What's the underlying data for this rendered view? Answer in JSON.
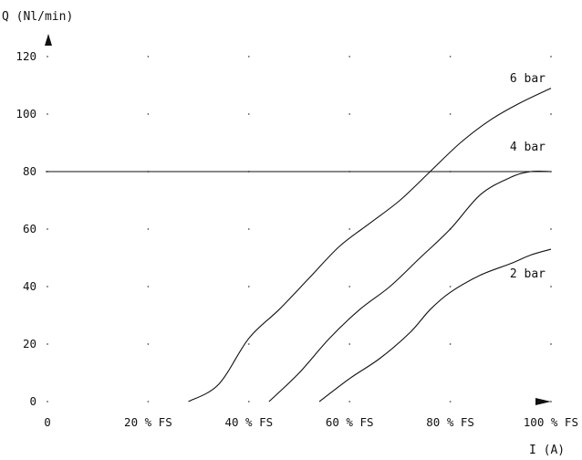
{
  "chart_data": {
    "type": "line",
    "ylabel": "Q (Nl/min)",
    "xlabel": "I (A)",
    "ylim": [
      0,
      120
    ],
    "y_ticks": [
      0,
      20,
      40,
      60,
      80,
      100,
      120
    ],
    "x_ticks": [
      "0",
      "20 % FS",
      "40 % FS",
      "60 % FS",
      "80 % FS",
      "100 % FS"
    ],
    "x_tick_values": [
      0,
      20,
      40,
      60,
      80,
      100
    ],
    "xlim": [
      0,
      100
    ],
    "grid": "dots",
    "reference_line": {
      "y": 80
    },
    "series": [
      {
        "name": "6 bar",
        "x": [
          28,
          34,
          40,
          46,
          52,
          58,
          64,
          70,
          76,
          82,
          88,
          94,
          100
        ],
        "y": [
          0,
          6,
          22,
          32,
          43,
          54,
          62,
          70,
          80,
          90,
          98,
          104,
          109
        ]
      },
      {
        "name": "4 bar",
        "x": [
          44,
          50,
          56,
          62,
          68,
          74,
          80,
          86,
          92,
          96,
          100
        ],
        "y": [
          0,
          10,
          22,
          32,
          40,
          50,
          60,
          72,
          78,
          80,
          80
        ]
      },
      {
        "name": "2 bar",
        "x": [
          54,
          60,
          66,
          72,
          76,
          80,
          86,
          92,
          96,
          100
        ],
        "y": [
          0,
          8,
          15,
          24,
          32,
          38,
          44,
          48,
          51,
          53
        ]
      }
    ]
  }
}
